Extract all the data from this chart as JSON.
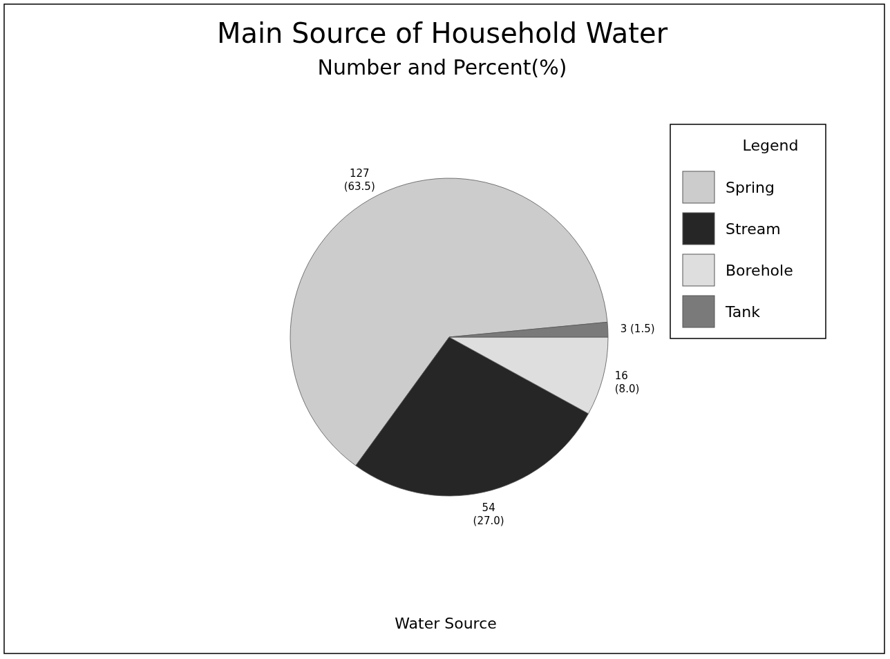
{
  "chart_data": {
    "type": "pie",
    "title": "Main Source of Household Water",
    "subtitle": "Number and Percent(%)",
    "xlabel": "Water Source",
    "legend_title": "Legend",
    "legend": "top right",
    "categories": [
      "Spring",
      "Stream",
      "Borehole",
      "Tank"
    ],
    "values": [
      127,
      54,
      16,
      3
    ],
    "colors": [
      "#cccccc",
      "#262626",
      "#dedede",
      "#7a7a7a"
    ],
    "value_labels": [
      "127\n(63.5)",
      "54\n(27.0)",
      "16\n(8.0)",
      "3 (1.5)"
    ]
  }
}
